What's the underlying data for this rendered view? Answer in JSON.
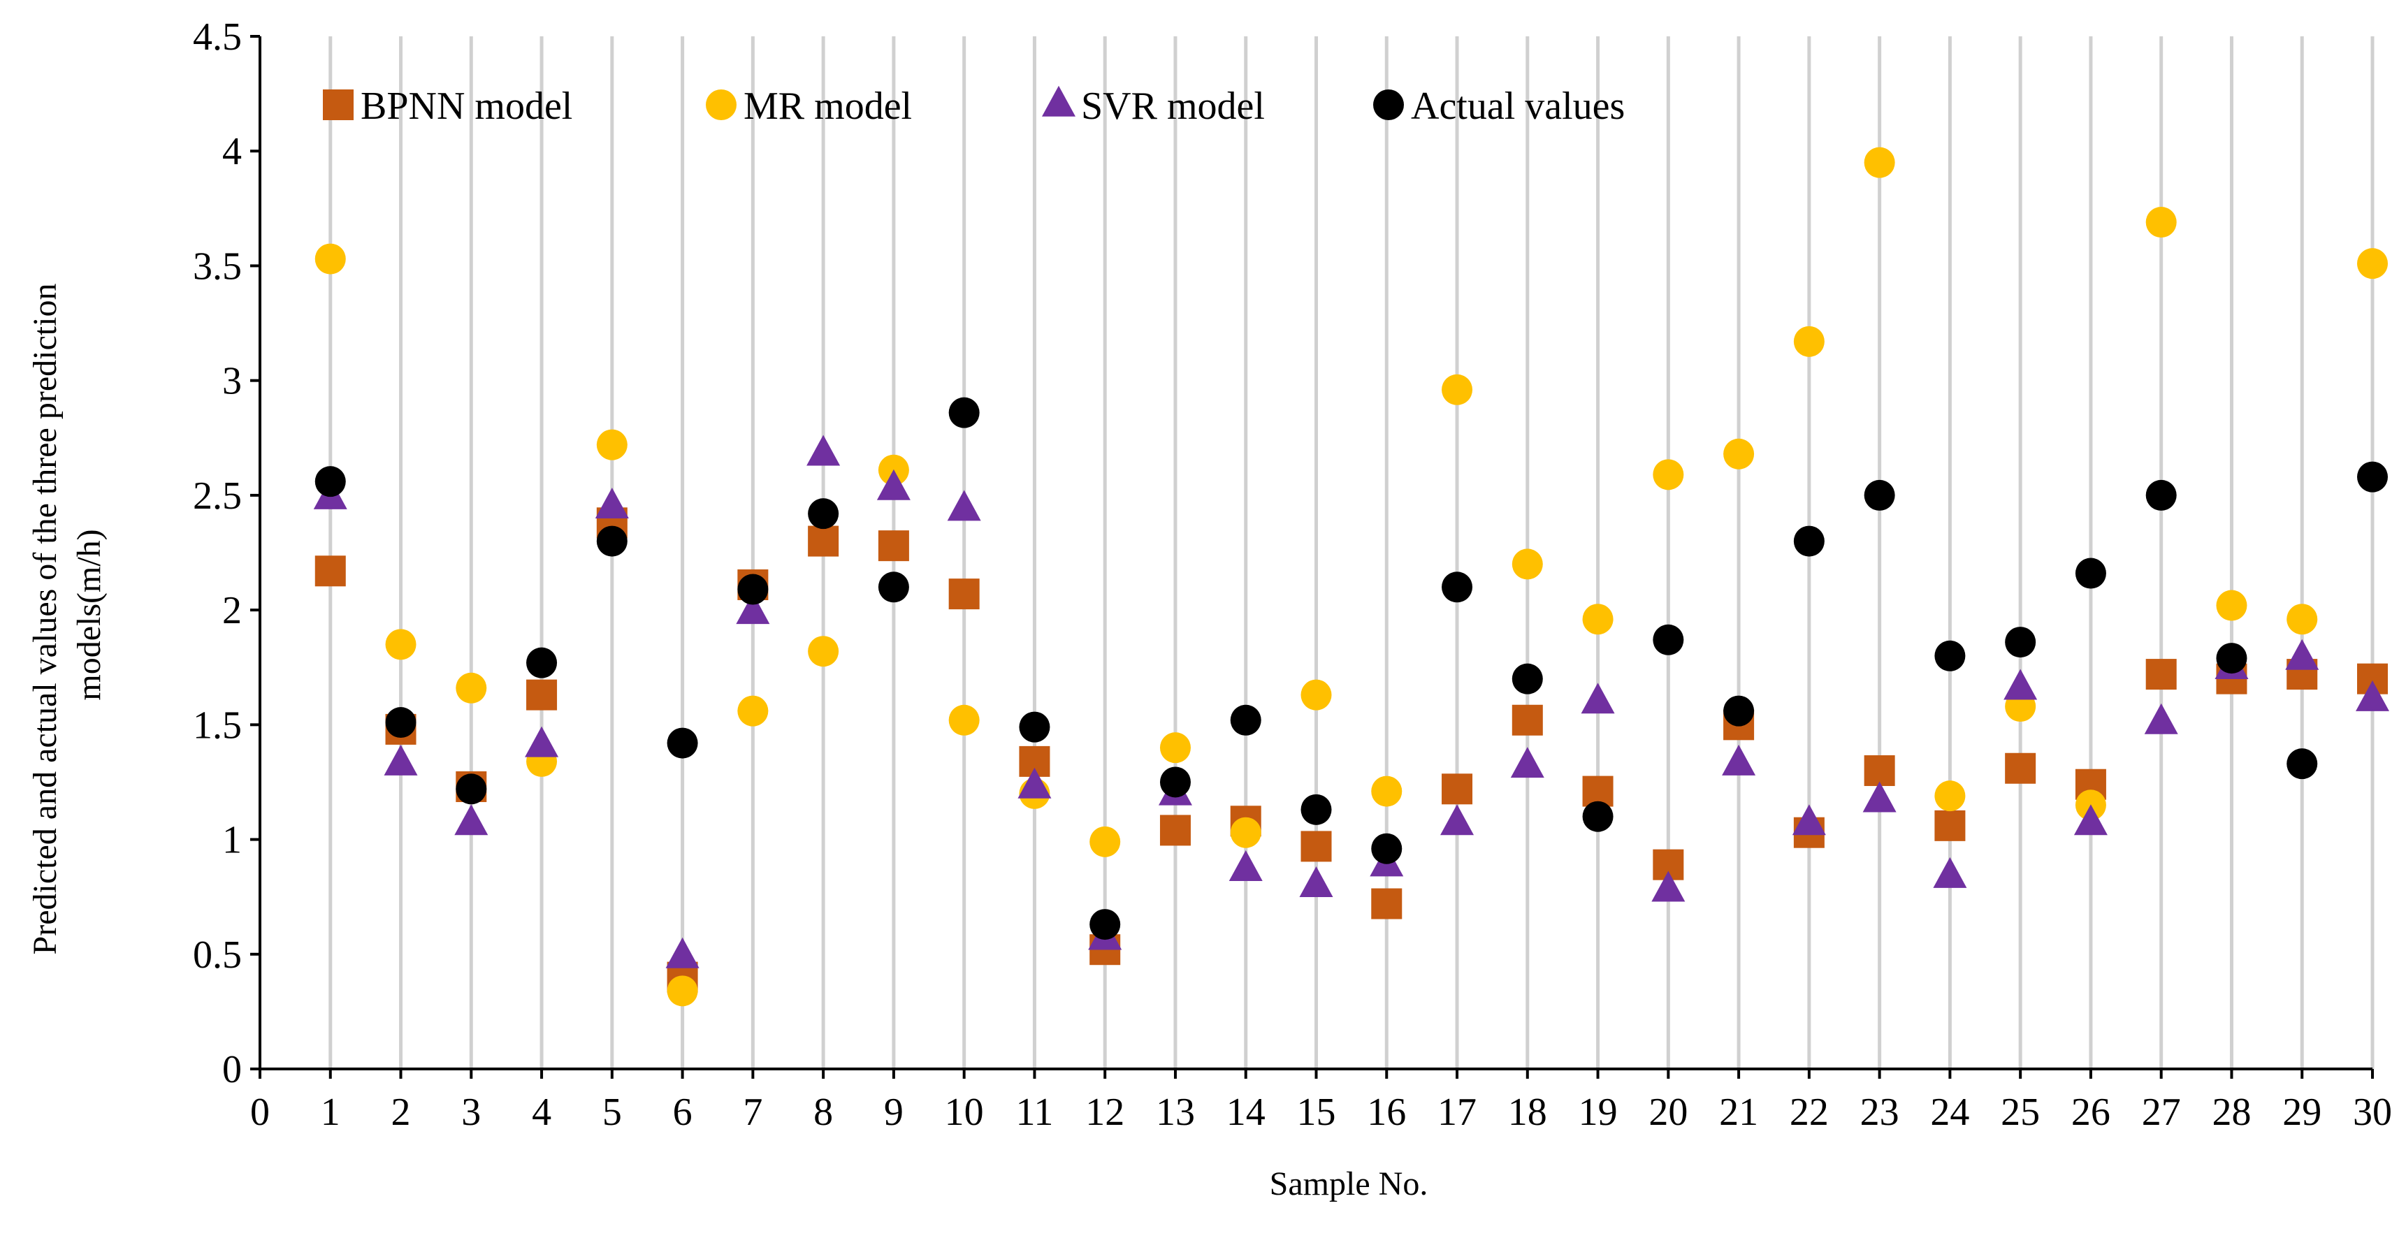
{
  "chart_data": {
    "type": "scatter",
    "title": "",
    "xlabel": "Sample No.",
    "ylabel_lines": [
      "Predicted and actual values of the three prediction",
      "models(m/h)"
    ],
    "x": [
      1,
      2,
      3,
      4,
      5,
      6,
      7,
      8,
      9,
      10,
      11,
      12,
      13,
      14,
      15,
      16,
      17,
      18,
      19,
      20,
      21,
      22,
      23,
      24,
      25,
      26,
      27,
      28,
      29,
      30
    ],
    "xlim": [
      0,
      30
    ],
    "ylim": [
      0,
      4.5
    ],
    "x_ticks": [
      "0",
      "1",
      "2",
      "3",
      "4",
      "5",
      "6",
      "7",
      "8",
      "9",
      "10",
      "11",
      "12",
      "13",
      "14",
      "15",
      "16",
      "17",
      "18",
      "19",
      "20",
      "21",
      "22",
      "23",
      "24",
      "25",
      "26",
      "27",
      "28",
      "29",
      "30"
    ],
    "y_ticks": [
      "0",
      "0.5",
      "1",
      "1.5",
      "2",
      "2.5",
      "3",
      "3.5",
      "4",
      "4.5"
    ],
    "grid": "vertical",
    "legend_position": "top-left",
    "series": [
      {
        "name": "BPNN model",
        "marker": "square",
        "color": "#c55a11",
        "values": [
          2.17,
          1.48,
          1.23,
          1.63,
          2.38,
          0.4,
          2.11,
          2.3,
          2.28,
          2.07,
          1.34,
          0.52,
          1.04,
          1.08,
          0.97,
          0.72,
          1.22,
          1.52,
          1.21,
          0.89,
          1.5,
          1.03,
          1.3,
          1.06,
          1.31,
          1.24,
          1.72,
          1.7,
          1.72,
          1.7
        ]
      },
      {
        "name": "MR model",
        "marker": "circle",
        "color": "#ffc000",
        "values": [
          3.53,
          1.85,
          1.66,
          1.34,
          2.72,
          0.34,
          1.56,
          1.82,
          2.61,
          1.52,
          1.2,
          0.99,
          1.4,
          1.03,
          1.63,
          1.21,
          2.96,
          2.2,
          1.96,
          2.59,
          2.68,
          3.17,
          3.95,
          1.19,
          1.58,
          1.15,
          3.69,
          2.02,
          1.96,
          3.51
        ]
      },
      {
        "name": "SVR model",
        "marker": "triangle",
        "color": "#7030a0",
        "values": [
          2.49,
          1.33,
          1.07,
          1.41,
          2.45,
          0.49,
          1.99,
          2.68,
          2.53,
          2.44,
          1.23,
          0.57,
          1.2,
          0.87,
          0.8,
          0.89,
          1.07,
          1.32,
          1.6,
          0.78,
          1.33,
          1.07,
          1.17,
          0.84,
          1.66,
          1.07,
          1.51,
          1.75,
          1.79,
          1.61
        ]
      },
      {
        "name": "Actual values",
        "marker": "circle",
        "color": "#000000",
        "values": [
          2.56,
          1.51,
          1.22,
          1.77,
          2.3,
          1.42,
          2.09,
          2.42,
          2.1,
          2.86,
          1.49,
          0.63,
          1.25,
          1.52,
          1.13,
          0.96,
          2.1,
          1.7,
          1.1,
          1.87,
          1.56,
          2.3,
          2.5,
          1.8,
          1.86,
          2.16,
          2.5,
          1.79,
          1.33,
          2.58
        ]
      }
    ]
  }
}
